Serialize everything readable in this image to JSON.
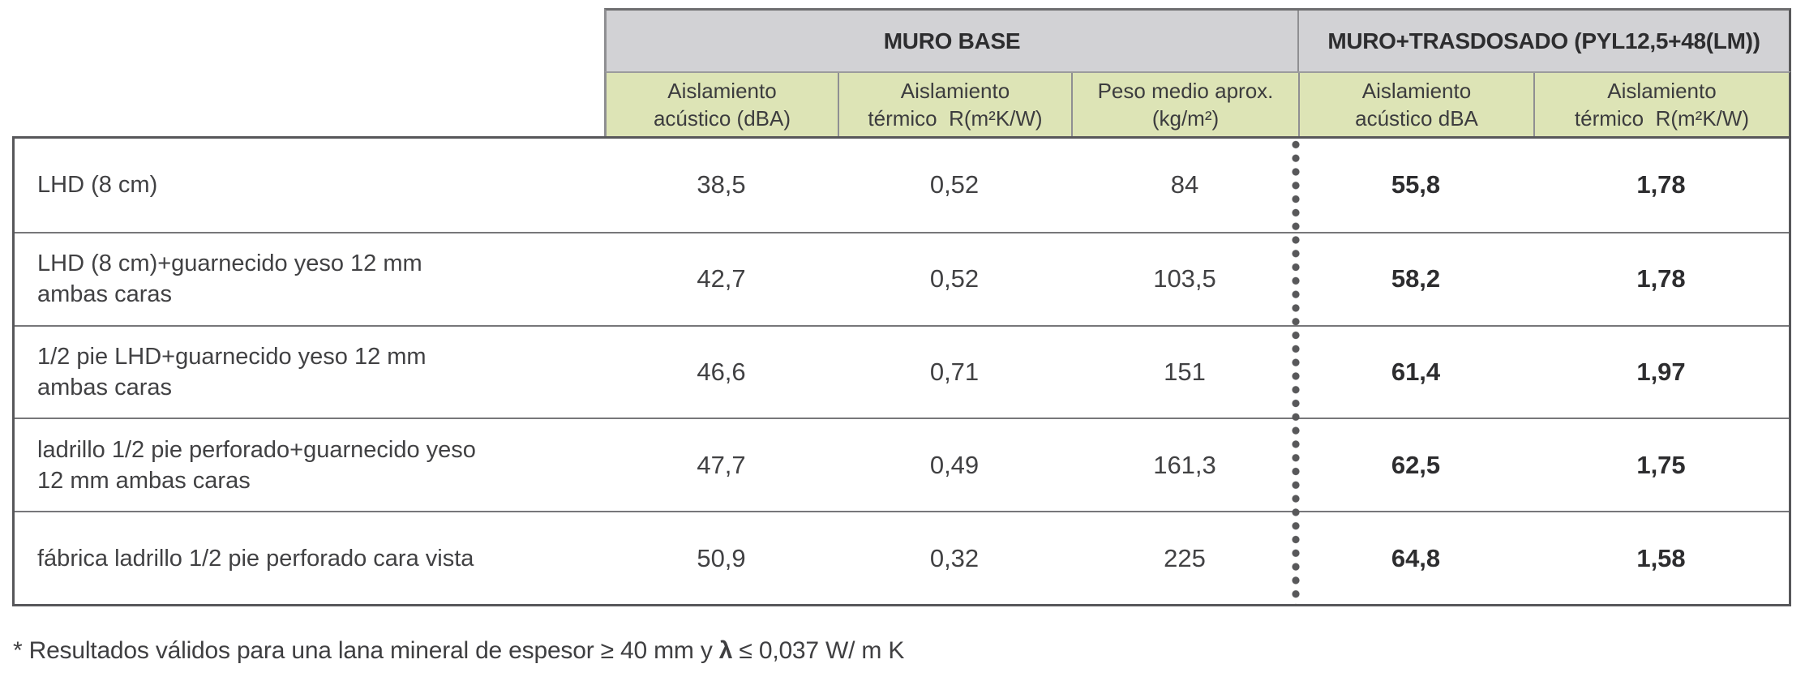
{
  "page": {
    "background": "#ffffff"
  },
  "colors": {
    "gray_header_bg": "#d2d2d5",
    "green_header_bg": "#dde4b6",
    "outer_border": "#58585a",
    "row_line": "#77777a",
    "cell_separator": "#8f8f92",
    "dot_color": "#58585a",
    "text": "#3f3f41",
    "bold_text": "#2d2d2f"
  },
  "table": {
    "sections": [
      {
        "title": "MURO BASE"
      },
      {
        "title": "MURO+TRASDOSADO (PYL12,5+48(LM))"
      }
    ],
    "columns": [
      {
        "line1": "Aislamiento",
        "line2": "acústico (dBA)"
      },
      {
        "line1": "Aislamiento",
        "line2": "térmico  R(m²K/W)"
      },
      {
        "line1": "Peso medio aprox.",
        "line2": "(kg/m²)"
      },
      {
        "line1": "Aislamiento",
        "line2": "acústico dBA"
      },
      {
        "line1": "Aislamiento",
        "line2": "térmico  R(m²K/W)"
      }
    ],
    "rows": [
      {
        "label": "LHD (8 cm)",
        "values": [
          "38,5",
          "0,52",
          "84",
          "55,8",
          "1,78"
        ]
      },
      {
        "label": "LHD (8 cm)+guarnecido yeso 12 mm\nambas caras",
        "values": [
          "42,7",
          "0,52",
          "103,5",
          "58,2",
          "1,78"
        ]
      },
      {
        "label": "1/2 pie LHD+guarnecido yeso 12 mm\nambas caras",
        "values": [
          "46,6",
          "0,71",
          "151",
          "61,4",
          "1,97"
        ]
      },
      {
        "label": "ladrillo 1/2 pie perforado+guarnecido yeso\n12 mm ambas caras",
        "values": [
          "47,7",
          "0,49",
          "161,3",
          "62,5",
          "1,75"
        ]
      },
      {
        "label": "fábrica ladrillo 1/2 pie perforado cara vista",
        "values": [
          "50,9",
          "0,32",
          "225",
          "64,8",
          "1,58"
        ]
      }
    ],
    "footnote": {
      "before": "* Resultados válidos para una lana mineral de espesor ≥ 40 mm y ",
      "lambda": "λ",
      "after": " ≤ 0,037 W/ m K"
    }
  }
}
